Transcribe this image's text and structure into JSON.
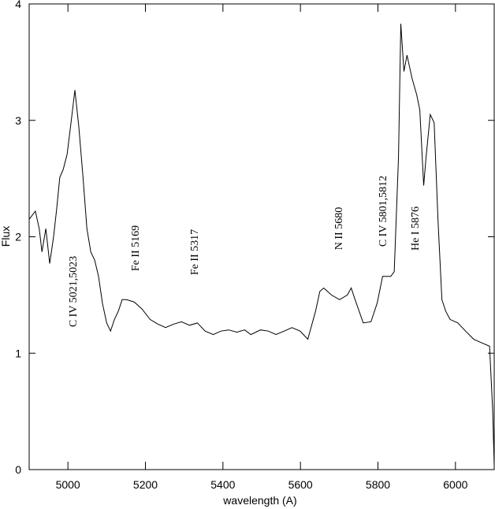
{
  "chart_data": {
    "type": "line",
    "xlabel": "wavelength (A)",
    "ylabel": "Flux",
    "xlim": [
      4900,
      6100
    ],
    "ylim": [
      0,
      4
    ],
    "xticks": [
      5000,
      5200,
      5400,
      5600,
      5800,
      6000
    ],
    "yticks": [
      0,
      1,
      2,
      3,
      4
    ],
    "grid": false,
    "annotations": [
      "C IV 5021,5023",
      "Fe II 5169",
      "Fe II 5317",
      "N II 5680",
      "C IV 5801,5812",
      "He I 5876"
    ],
    "series": [
      {
        "color": "#000000",
        "x": [
          4900,
          4916,
          4926,
          4933,
          4943,
          4953,
          4963,
          4971,
          4979,
          4988,
          4998,
          5008,
          5018,
          5028,
          5039,
          5049,
          5059,
          5069,
          5079,
          5089,
          5100,
          5110,
          5120,
          5130,
          5140,
          5151,
          5171,
          5191,
          5212,
          5232,
          5252,
          5273,
          5293,
          5314,
          5334,
          5354,
          5375,
          5395,
          5415,
          5436,
          5456,
          5472,
          5497,
          5517,
          5537,
          5558,
          5578,
          5599,
          5619,
          5639,
          5650,
          5660,
          5680,
          5701,
          5721,
          5731,
          5741,
          5762,
          5782,
          5798,
          5812,
          5833,
          5842,
          5853,
          5859,
          5867,
          5875,
          5888,
          5900,
          5908,
          5918,
          5924,
          5935,
          5945,
          5955,
          5965,
          5975,
          5986,
          6006,
          6026,
          6047,
          6067,
          6088,
          6096,
          6100
        ],
        "values": [
          2.15,
          2.22,
          2.07,
          1.87,
          2.07,
          1.77,
          2.0,
          2.24,
          2.51,
          2.58,
          2.71,
          2.98,
          3.26,
          2.95,
          2.51,
          2.07,
          1.87,
          1.8,
          1.66,
          1.43,
          1.26,
          1.19,
          1.29,
          1.36,
          1.46,
          1.46,
          1.44,
          1.38,
          1.29,
          1.25,
          1.22,
          1.25,
          1.27,
          1.24,
          1.26,
          1.19,
          1.16,
          1.19,
          1.2,
          1.18,
          1.2,
          1.16,
          1.2,
          1.19,
          1.16,
          1.19,
          1.22,
          1.19,
          1.12,
          1.36,
          1.53,
          1.56,
          1.5,
          1.46,
          1.5,
          1.56,
          1.46,
          1.26,
          1.27,
          1.43,
          1.66,
          1.66,
          1.7,
          2.68,
          3.83,
          3.42,
          3.56,
          3.36,
          3.22,
          3.09,
          2.44,
          2.68,
          3.05,
          2.98,
          2.14,
          1.46,
          1.36,
          1.29,
          1.26,
          1.19,
          1.12,
          1.09,
          1.06,
          0.51,
          0.04
        ]
      }
    ]
  }
}
